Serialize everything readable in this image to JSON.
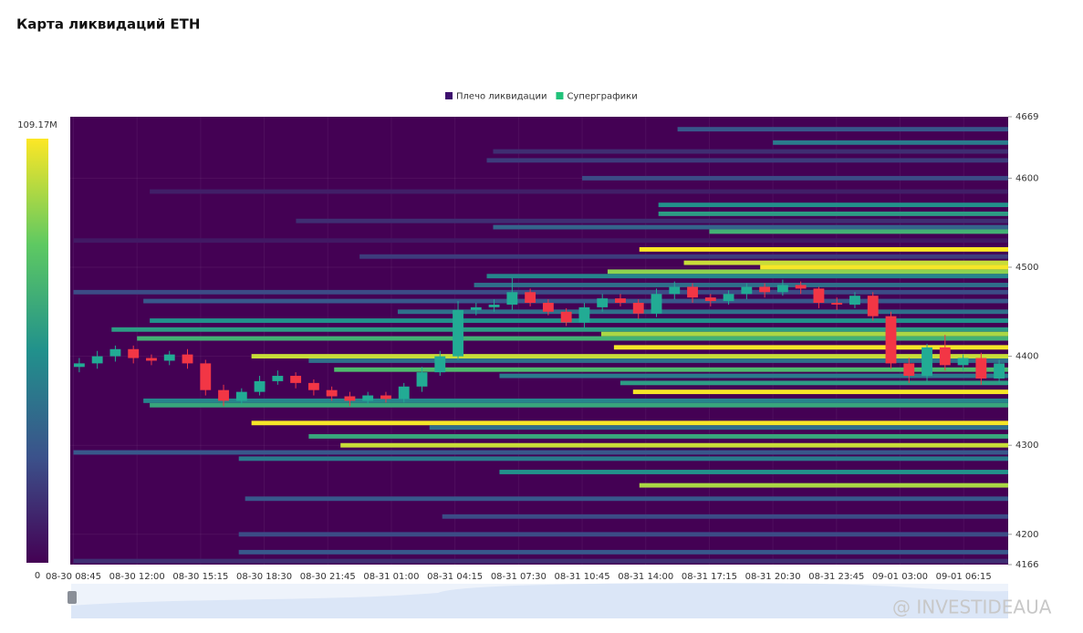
{
  "chart_data": {
    "type": "heatmap",
    "title": "Карта ликвидаций ETH",
    "series": [
      {
        "name": "Плечо ликвидации",
        "color": "#3d0f6e"
      },
      {
        "name": "Суперграфики",
        "color": "#21c27a"
      }
    ],
    "categories": [
      "08-30 08:45",
      "08-30 12:00",
      "08-30 15:15",
      "08-30 18:30",
      "08-30 21:45",
      "08-31 01:00",
      "08-31 04:15",
      "08-31 07:30",
      "08-31 10:45",
      "08-31 14:00",
      "08-31 17:15",
      "08-31 20:30",
      "08-31 23:45",
      "09-01 03:00",
      "09-01 06:15"
    ],
    "xlim": [
      -0.05,
      14.7
    ],
    "ylim": [
      4166,
      4669
    ],
    "yticks": [
      4166,
      4200,
      4300,
      4400,
      4500,
      4600,
      4669
    ],
    "grid": true,
    "colorbar_lim": [
      0,
      109.17
    ],
    "colorbar_ticks": [
      0,
      {
        "value": 109.17,
        "label": "109.17M"
      }
    ],
    "bands": {
      "price": [
        4655,
        4640,
        4630,
        4620,
        4600,
        4585,
        4570,
        4560,
        4552,
        4545,
        4540,
        4530,
        4520,
        4512,
        4505,
        4500,
        4495,
        4490,
        4480,
        4472,
        4462,
        4450,
        4440,
        4430,
        4425,
        4420,
        4410,
        4400,
        4395,
        4385,
        4378,
        4370,
        4360,
        4350,
        4345,
        4325,
        4320,
        4310,
        4300,
        4292,
        4285,
        4270,
        4255,
        4240,
        4220,
        4200,
        4180,
        4170
      ],
      "x0": [
        9.5,
        11,
        6.6,
        6.5,
        8,
        1.2,
        9.2,
        9.2,
        3.5,
        6.6,
        10,
        0,
        8.9,
        4.5,
        9.6,
        10.8,
        8.4,
        6.5,
        6.3,
        0,
        1.1,
        5.1,
        1.2,
        0.6,
        8.3,
        1,
        8.5,
        2.8,
        3.7,
        4.1,
        6.7,
        8.6,
        8.8,
        1.1,
        1.2,
        2.8,
        5.6,
        3.7,
        4.2,
        0,
        2.6,
        6.7,
        8.9,
        2.7,
        5.8,
        2.6,
        2.6,
        0
      ],
      "values": [
        30,
        45,
        15,
        20,
        25,
        10,
        55,
        60,
        15,
        35,
        70,
        8,
        109,
        20,
        100,
        108,
        90,
        50,
        40,
        25,
        30,
        40,
        55,
        60,
        95,
        70,
        108,
        100,
        40,
        75,
        45,
        60,
        108,
        50,
        65,
        108,
        40,
        65,
        100,
        30,
        45,
        55,
        95,
        30,
        25,
        25,
        30,
        15
      ]
    },
    "candles": {
      "up_color": "#22ab94",
      "down_color": "#f23645",
      "open": [
        4388,
        4392,
        4400,
        4408,
        4398,
        4395,
        4402,
        4392,
        4362,
        4350,
        4360,
        4372,
        4378,
        4370,
        4362,
        4355,
        4350,
        4356,
        4352,
        4366,
        4382,
        4400,
        4452,
        4455,
        4458,
        4472,
        4460,
        4450,
        4438,
        4455,
        4465,
        4460,
        4448,
        4470,
        4478,
        4466,
        4462,
        4470,
        4478,
        4472,
        4480,
        4476,
        4460,
        4458,
        4468,
        4445,
        4392,
        4378,
        4410,
        4390,
        4398,
        4375
      ],
      "high": [
        4398,
        4406,
        4412,
        4412,
        4402,
        4406,
        4408,
        4396,
        4368,
        4364,
        4378,
        4384,
        4382,
        4374,
        4366,
        4360,
        4360,
        4360,
        4370,
        4388,
        4406,
        4462,
        4460,
        4464,
        4488,
        4476,
        4464,
        4454,
        4460,
        4470,
        4470,
        4464,
        4476,
        4484,
        4482,
        4470,
        4474,
        4482,
        4482,
        4486,
        4484,
        4478,
        4466,
        4472,
        4472,
        4450,
        4398,
        4414,
        4424,
        4402,
        4404,
        4396
      ],
      "low": [
        4382,
        4386,
        4394,
        4392,
        4390,
        4390,
        4386,
        4356,
        4344,
        4346,
        4356,
        4368,
        4364,
        4356,
        4350,
        4344,
        4346,
        4348,
        4348,
        4360,
        4378,
        4396,
        4446,
        4450,
        4452,
        4456,
        4446,
        4434,
        4432,
        4450,
        4456,
        4442,
        4444,
        4464,
        4460,
        4456,
        4458,
        4464,
        4466,
        4468,
        4470,
        4454,
        4452,
        4454,
        4440,
        4386,
        4370,
        4372,
        4384,
        4384,
        4368,
        4370
      ],
      "close": [
        4392,
        4400,
        4408,
        4398,
        4395,
        4402,
        4392,
        4362,
        4350,
        4360,
        4372,
        4378,
        4370,
        4362,
        4355,
        4350,
        4356,
        4352,
        4366,
        4382,
        4400,
        4452,
        4455,
        4458,
        4472,
        4460,
        4450,
        4438,
        4455,
        4465,
        4460,
        4448,
        4470,
        4478,
        4466,
        4462,
        4470,
        4478,
        4472,
        4480,
        4476,
        4460,
        4458,
        4468,
        4445,
        4392,
        4378,
        4410,
        4390,
        4398,
        4375,
        4392
      ]
    },
    "watermark": "@ INVESTIDEAUA"
  }
}
